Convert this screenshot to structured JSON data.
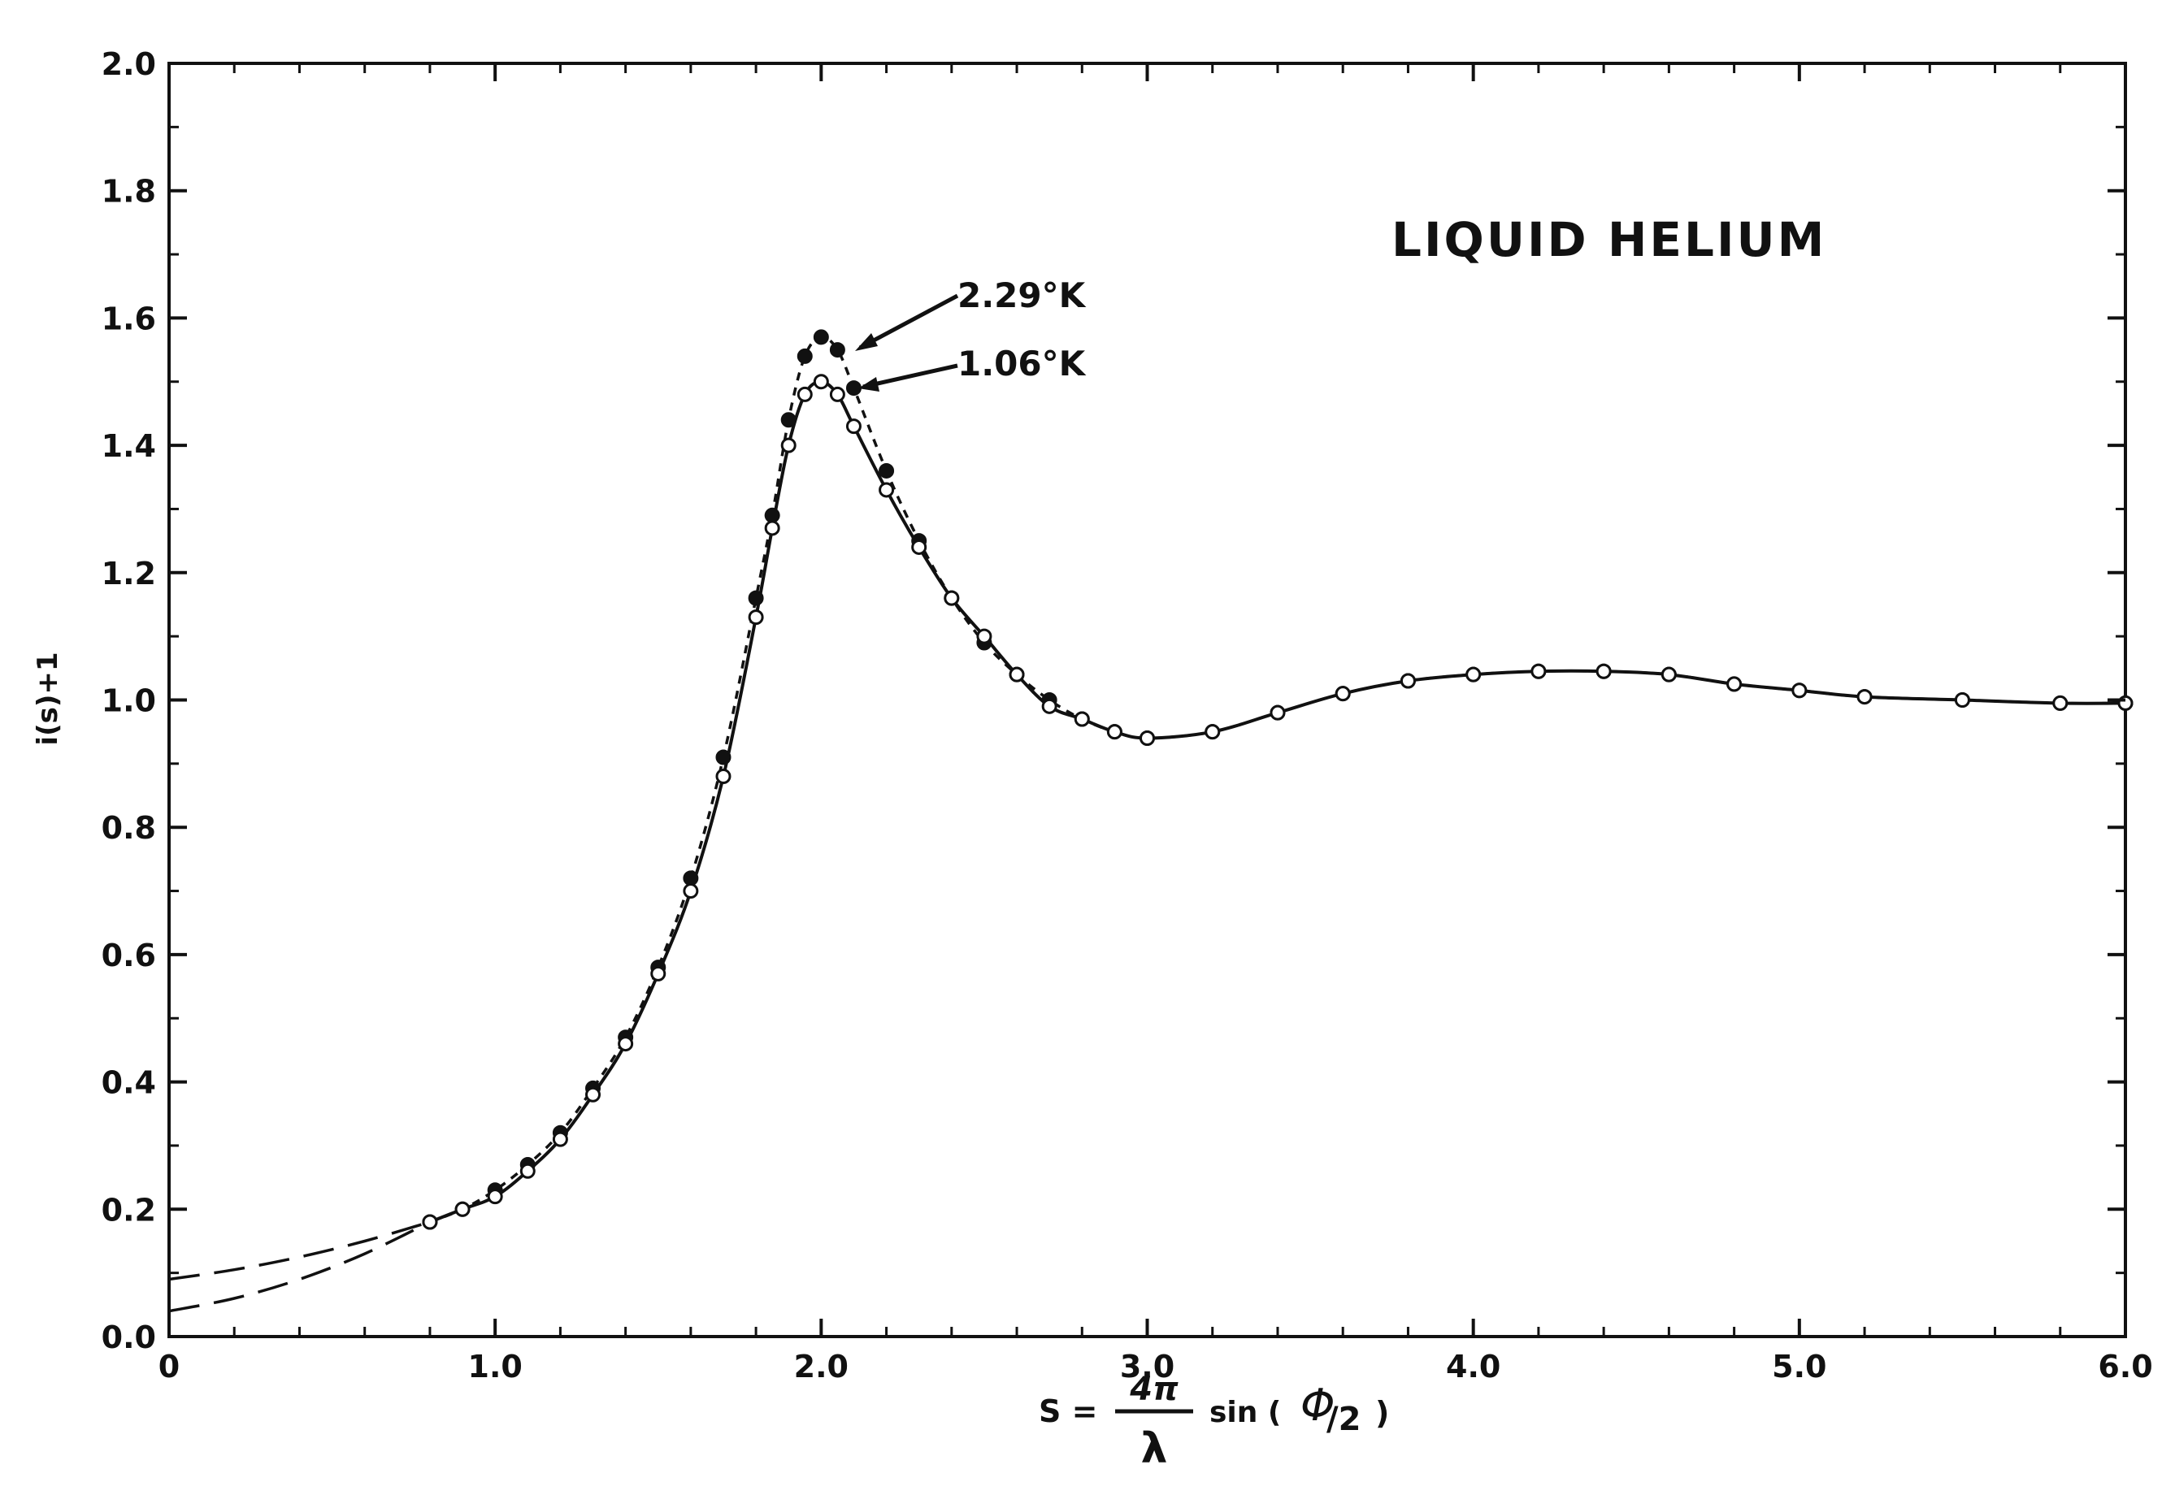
{
  "chart_data": {
    "type": "line",
    "title": "LIQUID HELIUM",
    "xlabel": {
      "prefix": "S =",
      "frac_num": "4π",
      "frac_den": "λ",
      "suffix_func": "sin (",
      "phi": "Φ",
      "slash_two": "/2",
      "close": ")"
    },
    "ylabel": "i(s)+1",
    "xlim": [
      0,
      6.0
    ],
    "ylim": [
      0,
      2.0
    ],
    "x_ticks": [
      "0",
      "1.0",
      "2.0",
      "3.0",
      "4.0",
      "5.0",
      "6.0"
    ],
    "x_tick_values": [
      0,
      1,
      2,
      3,
      4,
      5,
      6
    ],
    "y_ticks": [
      "0.0",
      "0.2",
      "0.4",
      "0.6",
      "0.8",
      "1.0",
      "1.2",
      "1.4",
      "1.6",
      "1.8",
      "2.0"
    ],
    "y_tick_values": [
      0,
      0.2,
      0.4,
      0.6,
      0.8,
      1.0,
      1.2,
      1.4,
      1.6,
      1.8,
      2.0
    ],
    "grid": false,
    "annotations": [
      "2.29°K",
      "1.06°K"
    ],
    "series": [
      {
        "name": "2.29°K",
        "style": "dashed",
        "marker": "filled",
        "values": [
          [
            0.8,
            0.18
          ],
          [
            0.9,
            0.2
          ],
          [
            1.0,
            0.23
          ],
          [
            1.1,
            0.27
          ],
          [
            1.2,
            0.32
          ],
          [
            1.3,
            0.39
          ],
          [
            1.4,
            0.47
          ],
          [
            1.5,
            0.58
          ],
          [
            1.6,
            0.72
          ],
          [
            1.7,
            0.91
          ],
          [
            1.8,
            1.16
          ],
          [
            1.85,
            1.29
          ],
          [
            1.9,
            1.44
          ],
          [
            1.95,
            1.54
          ],
          [
            2.0,
            1.57
          ],
          [
            2.05,
            1.55
          ],
          [
            2.1,
            1.49
          ],
          [
            2.2,
            1.36
          ],
          [
            2.3,
            1.25
          ],
          [
            2.4,
            1.16
          ],
          [
            2.5,
            1.09
          ],
          [
            2.6,
            1.04
          ],
          [
            2.7,
            1.0
          ],
          [
            2.8,
            0.97
          ],
          [
            2.9,
            0.95
          ],
          [
            3.0,
            0.94
          ],
          [
            3.2,
            0.95
          ],
          [
            3.4,
            0.98
          ],
          [
            3.6,
            1.01
          ],
          [
            3.8,
            1.03
          ],
          [
            4.0,
            1.04
          ],
          [
            4.2,
            1.045
          ],
          [
            4.4,
            1.045
          ],
          [
            4.6,
            1.04
          ],
          [
            4.8,
            1.025
          ],
          [
            5.0,
            1.015
          ],
          [
            5.2,
            1.005
          ],
          [
            5.5,
            1.0
          ],
          [
            5.8,
            0.995
          ],
          [
            6.0,
            0.995
          ]
        ]
      },
      {
        "name": "1.06°K",
        "style": "solid",
        "marker": "open",
        "values": [
          [
            0.8,
            0.18
          ],
          [
            0.9,
            0.2
          ],
          [
            1.0,
            0.22
          ],
          [
            1.1,
            0.26
          ],
          [
            1.2,
            0.31
          ],
          [
            1.3,
            0.38
          ],
          [
            1.4,
            0.46
          ],
          [
            1.5,
            0.57
          ],
          [
            1.6,
            0.7
          ],
          [
            1.7,
            0.88
          ],
          [
            1.8,
            1.13
          ],
          [
            1.85,
            1.27
          ],
          [
            1.9,
            1.4
          ],
          [
            1.95,
            1.48
          ],
          [
            2.0,
            1.5
          ],
          [
            2.05,
            1.48
          ],
          [
            2.1,
            1.43
          ],
          [
            2.2,
            1.33
          ],
          [
            2.3,
            1.24
          ],
          [
            2.4,
            1.16
          ],
          [
            2.5,
            1.1
          ],
          [
            2.6,
            1.04
          ],
          [
            2.7,
            0.99
          ],
          [
            2.8,
            0.97
          ],
          [
            2.9,
            0.95
          ],
          [
            3.0,
            0.94
          ],
          [
            3.2,
            0.95
          ],
          [
            3.4,
            0.98
          ],
          [
            3.6,
            1.01
          ],
          [
            3.8,
            1.03
          ],
          [
            4.0,
            1.04
          ],
          [
            4.2,
            1.045
          ],
          [
            4.4,
            1.045
          ],
          [
            4.6,
            1.04
          ],
          [
            4.8,
            1.025
          ],
          [
            5.0,
            1.015
          ],
          [
            5.2,
            1.005
          ],
          [
            5.5,
            1.0
          ],
          [
            5.8,
            0.995
          ],
          [
            6.0,
            0.995
          ]
        ]
      }
    ],
    "extrapolations": [
      {
        "style": "long-dash",
        "values": [
          [
            0,
            0.09
          ],
          [
            0.2,
            0.105
          ],
          [
            0.4,
            0.125
          ],
          [
            0.6,
            0.15
          ],
          [
            0.8,
            0.18
          ]
        ]
      },
      {
        "style": "long-dash",
        "values": [
          [
            0,
            0.04
          ],
          [
            0.2,
            0.06
          ],
          [
            0.4,
            0.09
          ],
          [
            0.6,
            0.13
          ],
          [
            0.8,
            0.18
          ]
        ]
      }
    ]
  }
}
